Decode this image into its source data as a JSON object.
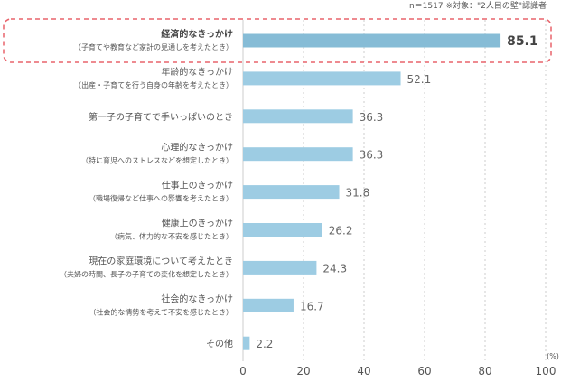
{
  "note": "n＝1517 ※対象：\"2人目の壁\"認識者",
  "chart_data": {
    "type": "bar",
    "orientation": "horizontal",
    "categories": [
      {
        "label": "経済的なきっかけ",
        "sub": "（子育てや教育など家計の見通しを考えたとき）"
      },
      {
        "label": "年齢的なきっかけ",
        "sub": "（出産・子育てを行う自身の年齢を考えたとき）"
      },
      {
        "label": "第一子の子育てで手いっぱいのとき",
        "sub": ""
      },
      {
        "label": "心理的なきっかけ",
        "sub": "（特に育児へのストレスなどを想定したとき）"
      },
      {
        "label": "仕事上のきっかけ",
        "sub": "（職場復帰など仕事への影響を考えたとき）"
      },
      {
        "label": "健康上のきっかけ",
        "sub": "（病気、体力的な不安を感じたとき）"
      },
      {
        "label": "現在の家庭環境について考えたとき",
        "sub": "（夫婦の時間、長子の子育ての変化を想定したとき）"
      },
      {
        "label": "社会的なきっかけ",
        "sub": "（社会的な情勢を考えて不安を感じたとき）"
      },
      {
        "label": "その他",
        "sub": ""
      }
    ],
    "values": [
      85.1,
      52.1,
      36.3,
      36.3,
      31.8,
      26.2,
      24.3,
      16.7,
      2.2
    ],
    "value_labels": [
      "85.1",
      "52.1",
      "36.3",
      "36.3",
      "31.8",
      "26.2",
      "24.3",
      "16.7",
      "2.2"
    ],
    "xlim": [
      0,
      100
    ],
    "xticks": [
      0,
      20,
      40,
      60,
      80,
      100
    ],
    "tick_labels": [
      "0",
      "20",
      "40",
      "60",
      "80",
      "100"
    ],
    "unit_label": "(%)",
    "grid": true,
    "highlight_index": 0,
    "colors": {
      "bar": "#9dcce3",
      "highlight_bar": "#86bcd6",
      "grid": "#cccccc",
      "highlight_border": "#e8636b",
      "text": "#555555",
      "value_text": "#666666"
    }
  }
}
